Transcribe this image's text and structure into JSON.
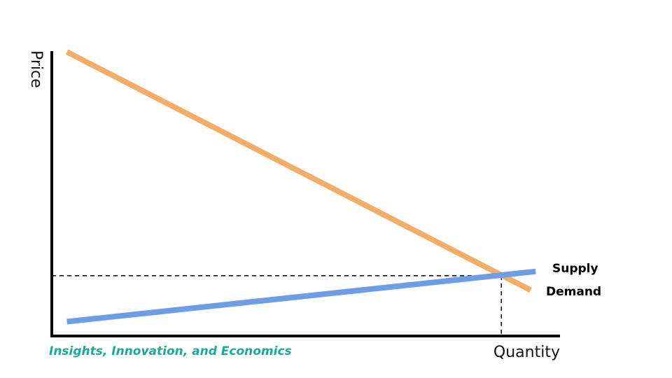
{
  "chart_data": {
    "type": "line",
    "title": "",
    "xlabel": "Quantity",
    "ylabel": "Price",
    "xlim": [
      0,
      100
    ],
    "ylim": [
      0,
      100
    ],
    "grid": false,
    "series": [
      {
        "name": "Demand",
        "color": "#f2ae68",
        "x": [
          3,
          95
        ],
        "y": [
          99,
          16
        ]
      },
      {
        "name": "Supply",
        "color": "#6e9de5",
        "x": [
          3,
          96
        ],
        "y": [
          5,
          22.5
        ]
      }
    ],
    "equilibrium": {
      "x": 89.2,
      "y": 21
    }
  },
  "footer": {
    "credit": "Insights, Innovation, and Economics"
  }
}
